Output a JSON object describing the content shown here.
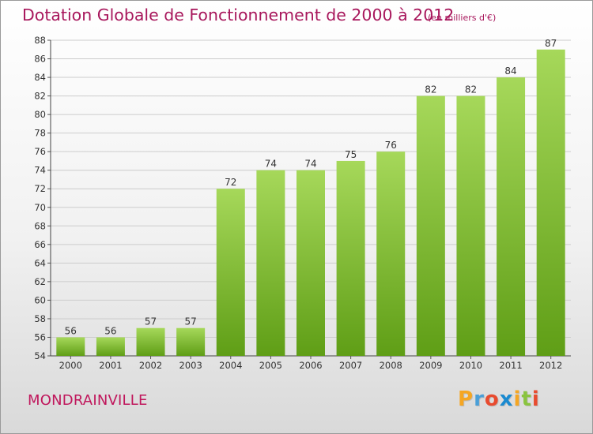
{
  "title": "Dotation Globale de Fonctionnement de 2000 à 2012",
  "subtitle": "(en milliers d'€)",
  "commune": "MONDRAINVILLE",
  "logo": {
    "letters": [
      "P",
      "r",
      "o",
      "x",
      "i",
      "t",
      "i"
    ],
    "colors": [
      "#f5a623",
      "#4a9fd8",
      "#e84b2f",
      "#1a8ad0",
      "#f5a623",
      "#8ac43f",
      "#e84b2f"
    ]
  },
  "colors": {
    "bar_light": "#a6d85a",
    "bar_dark": "#5f9e16",
    "title": "#a8175c",
    "grid": "#cccccc"
  },
  "chart_data": {
    "type": "bar",
    "categories": [
      "2000",
      "2001",
      "2002",
      "2003",
      "2004",
      "2005",
      "2006",
      "2007",
      "2008",
      "2009",
      "2010",
      "2011",
      "2012"
    ],
    "values": [
      56,
      56,
      57,
      57,
      72,
      74,
      74,
      75,
      76,
      82,
      82,
      84,
      87
    ],
    "ylim": [
      54,
      88
    ],
    "yticks": [
      54,
      56,
      58,
      60,
      62,
      64,
      66,
      68,
      70,
      72,
      74,
      76,
      78,
      80,
      82,
      84,
      86,
      88
    ],
    "grid": true,
    "data_labels": true
  }
}
